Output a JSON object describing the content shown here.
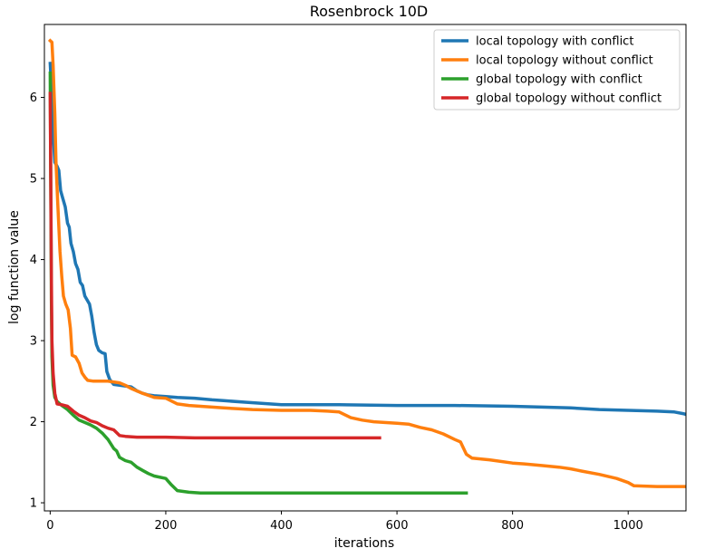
{
  "chart_data": {
    "type": "line",
    "title": "Rosenbrock 10D",
    "xlabel": "iterations",
    "ylabel": "log function value",
    "xlim": [
      -10,
      1100
    ],
    "ylim": [
      0.9,
      6.9
    ],
    "xticks": [
      0,
      200,
      400,
      600,
      800,
      1000
    ],
    "yticks": [
      1,
      2,
      3,
      4,
      5,
      6
    ],
    "grid": false,
    "legend_position": "top-right",
    "series": [
      {
        "name": "local topology with conflict",
        "color": "#1f77b4",
        "points": [
          [
            0,
            6.42
          ],
          [
            3,
            6.0
          ],
          [
            5,
            5.55
          ],
          [
            8,
            5.2
          ],
          [
            12,
            5.15
          ],
          [
            15,
            5.1
          ],
          [
            18,
            4.85
          ],
          [
            22,
            4.75
          ],
          [
            26,
            4.65
          ],
          [
            30,
            4.45
          ],
          [
            33,
            4.4
          ],
          [
            36,
            4.2
          ],
          [
            40,
            4.1
          ],
          [
            44,
            3.95
          ],
          [
            48,
            3.88
          ],
          [
            52,
            3.72
          ],
          [
            56,
            3.68
          ],
          [
            60,
            3.55
          ],
          [
            64,
            3.5
          ],
          [
            68,
            3.45
          ],
          [
            72,
            3.3
          ],
          [
            76,
            3.1
          ],
          [
            80,
            2.95
          ],
          [
            84,
            2.88
          ],
          [
            90,
            2.85
          ],
          [
            95,
            2.84
          ],
          [
            98,
            2.62
          ],
          [
            103,
            2.52
          ],
          [
            110,
            2.46
          ],
          [
            120,
            2.45
          ],
          [
            130,
            2.44
          ],
          [
            140,
            2.43
          ],
          [
            150,
            2.38
          ],
          [
            160,
            2.35
          ],
          [
            170,
            2.33
          ],
          [
            180,
            2.32
          ],
          [
            200,
            2.31
          ],
          [
            220,
            2.3
          ],
          [
            250,
            2.29
          ],
          [
            280,
            2.27
          ],
          [
            300,
            2.26
          ],
          [
            340,
            2.24
          ],
          [
            380,
            2.22
          ],
          [
            400,
            2.21
          ],
          [
            500,
            2.21
          ],
          [
            600,
            2.2
          ],
          [
            700,
            2.2
          ],
          [
            800,
            2.19
          ],
          [
            850,
            2.18
          ],
          [
            900,
            2.17
          ],
          [
            950,
            2.15
          ],
          [
            1000,
            2.14
          ],
          [
            1050,
            2.13
          ],
          [
            1080,
            2.12
          ],
          [
            1095,
            2.1
          ],
          [
            1100,
            2.09
          ]
        ]
      },
      {
        "name": "local topology without conflict",
        "color": "#ff7f0e",
        "points": [
          [
            0,
            6.7
          ],
          [
            3,
            6.68
          ],
          [
            5,
            6.4
          ],
          [
            8,
            5.8
          ],
          [
            10,
            5.2
          ],
          [
            13,
            4.7
          ],
          [
            17,
            4.1
          ],
          [
            20,
            3.8
          ],
          [
            23,
            3.55
          ],
          [
            27,
            3.45
          ],
          [
            31,
            3.38
          ],
          [
            35,
            3.15
          ],
          [
            38,
            2.82
          ],
          [
            44,
            2.8
          ],
          [
            50,
            2.72
          ],
          [
            55,
            2.6
          ],
          [
            60,
            2.55
          ],
          [
            65,
            2.51
          ],
          [
            75,
            2.5
          ],
          [
            100,
            2.5
          ],
          [
            120,
            2.48
          ],
          [
            130,
            2.45
          ],
          [
            140,
            2.41
          ],
          [
            160,
            2.35
          ],
          [
            180,
            2.3
          ],
          [
            200,
            2.29
          ],
          [
            220,
            2.22
          ],
          [
            240,
            2.2
          ],
          [
            260,
            2.19
          ],
          [
            300,
            2.17
          ],
          [
            350,
            2.15
          ],
          [
            400,
            2.14
          ],
          [
            450,
            2.14
          ],
          [
            480,
            2.13
          ],
          [
            500,
            2.12
          ],
          [
            520,
            2.05
          ],
          [
            540,
            2.02
          ],
          [
            560,
            2.0
          ],
          [
            600,
            1.98
          ],
          [
            620,
            1.97
          ],
          [
            640,
            1.93
          ],
          [
            660,
            1.9
          ],
          [
            680,
            1.85
          ],
          [
            700,
            1.78
          ],
          [
            710,
            1.75
          ],
          [
            720,
            1.6
          ],
          [
            730,
            1.55
          ],
          [
            760,
            1.53
          ],
          [
            800,
            1.49
          ],
          [
            820,
            1.48
          ],
          [
            850,
            1.46
          ],
          [
            880,
            1.44
          ],
          [
            900,
            1.42
          ],
          [
            920,
            1.39
          ],
          [
            950,
            1.35
          ],
          [
            980,
            1.3
          ],
          [
            1000,
            1.25
          ],
          [
            1010,
            1.21
          ],
          [
            1050,
            1.2
          ],
          [
            1100,
            1.2
          ]
        ]
      },
      {
        "name": "global topology with conflict",
        "color": "#2ca02c",
        "points": [
          [
            0,
            6.3
          ],
          [
            1,
            5.0
          ],
          [
            2,
            3.5
          ],
          [
            3,
            2.8
          ],
          [
            5,
            2.45
          ],
          [
            8,
            2.3
          ],
          [
            12,
            2.25
          ],
          [
            20,
            2.2
          ],
          [
            30,
            2.15
          ],
          [
            40,
            2.08
          ],
          [
            50,
            2.02
          ],
          [
            60,
            1.99
          ],
          [
            70,
            1.96
          ],
          [
            80,
            1.92
          ],
          [
            90,
            1.86
          ],
          [
            100,
            1.78
          ],
          [
            110,
            1.67
          ],
          [
            115,
            1.64
          ],
          [
            120,
            1.56
          ],
          [
            130,
            1.52
          ],
          [
            140,
            1.5
          ],
          [
            150,
            1.44
          ],
          [
            160,
            1.4
          ],
          [
            170,
            1.36
          ],
          [
            180,
            1.33
          ],
          [
            200,
            1.3
          ],
          [
            210,
            1.22
          ],
          [
            220,
            1.15
          ],
          [
            240,
            1.13
          ],
          [
            260,
            1.12
          ],
          [
            300,
            1.12
          ],
          [
            500,
            1.12
          ],
          [
            720,
            1.12
          ]
        ]
      },
      {
        "name": "global topology without conflict",
        "color": "#d62728",
        "points": [
          [
            0,
            6.05
          ],
          [
            1,
            5.0
          ],
          [
            2,
            3.8
          ],
          [
            3,
            3.0
          ],
          [
            5,
            2.6
          ],
          [
            8,
            2.35
          ],
          [
            12,
            2.22
          ],
          [
            20,
            2.21
          ],
          [
            30,
            2.19
          ],
          [
            40,
            2.13
          ],
          [
            50,
            2.08
          ],
          [
            60,
            2.05
          ],
          [
            70,
            2.01
          ],
          [
            80,
            1.99
          ],
          [
            90,
            1.95
          ],
          [
            100,
            1.92
          ],
          [
            110,
            1.9
          ],
          [
            120,
            1.83
          ],
          [
            130,
            1.82
          ],
          [
            150,
            1.81
          ],
          [
            200,
            1.81
          ],
          [
            250,
            1.8
          ],
          [
            300,
            1.8
          ],
          [
            400,
            1.8
          ],
          [
            500,
            1.8
          ],
          [
            570,
            1.8
          ]
        ]
      }
    ]
  }
}
